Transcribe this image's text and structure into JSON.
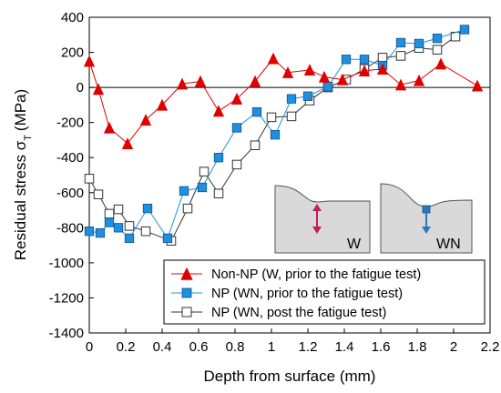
{
  "chart_data": {
    "type": "line",
    "xlabel": "Depth from surface (mm)",
    "ylabel": "Residual stress σ",
    "ylabel_subscript": "T",
    "ylabel_unit": "(MPa)",
    "xlim": [
      0,
      2.2
    ],
    "ylim": [
      -1400,
      400
    ],
    "xticks": [
      "0",
      "0.2",
      "0.4",
      "0.6",
      "0.8",
      "1",
      "1.2",
      "1.4",
      "1.6",
      "1.8",
      "2",
      "2.2"
    ],
    "yticks": [
      "-1400",
      "-1200",
      "-1000",
      "-800",
      "-600",
      "-400",
      "-200",
      "0",
      "200",
      "400"
    ],
    "legend_position": "bottom-right",
    "series": [
      {
        "name": "Non-NP (W, prior to the fatigue test)",
        "color": "#e00000",
        "marker": "triangle",
        "x": [
          0.0,
          0.05,
          0.11,
          0.21,
          0.31,
          0.4,
          0.51,
          0.61,
          0.71,
          0.81,
          0.91,
          1.01,
          1.09,
          1.21,
          1.29,
          1.39,
          1.51,
          1.61,
          1.71,
          1.81,
          1.93,
          2.13
        ],
        "y": [
          150,
          -10,
          -230,
          -320,
          -185,
          -100,
          20,
          35,
          -135,
          -65,
          35,
          165,
          85,
          100,
          60,
          45,
          95,
          105,
          15,
          40,
          135,
          10
        ]
      },
      {
        "name": "NP (WN, prior to the fatigue test)",
        "color": "#1e90e0",
        "marker": "square",
        "x": [
          0.0,
          0.06,
          0.11,
          0.16,
          0.22,
          0.32,
          0.43,
          0.52,
          0.62,
          0.71,
          0.81,
          0.92,
          1.02,
          1.11,
          1.2,
          1.31,
          1.41,
          1.51,
          1.61,
          1.71,
          1.81,
          1.91,
          2.06
        ],
        "y": [
          -820,
          -830,
          -770,
          -800,
          -860,
          -690,
          -860,
          -590,
          -570,
          -400,
          -230,
          -140,
          -270,
          -65,
          -50,
          5,
          160,
          160,
          125,
          255,
          250,
          280,
          330
        ]
      },
      {
        "name": "NP (WN, post the fatigue test)",
        "color": "#333333",
        "marker": "open-square",
        "x": [
          0.0,
          0.05,
          0.11,
          0.16,
          0.22,
          0.31,
          0.45,
          0.54,
          0.63,
          0.71,
          0.81,
          0.91,
          1.0,
          1.11,
          1.21,
          1.31,
          1.41,
          1.51,
          1.61,
          1.71,
          1.81,
          1.91,
          2.01
        ],
        "y": [
          -520,
          -610,
          -720,
          -695,
          -790,
          -820,
          -875,
          -690,
          -480,
          -605,
          -440,
          -330,
          -170,
          -165,
          -75,
          0,
          45,
          105,
          170,
          180,
          225,
          215,
          290
        ]
      }
    ],
    "inset": {
      "left_label": "W",
      "right_label": "WN",
      "left_arrow_color": "#c41e5a",
      "right_arrow_color": "#2a7ab8"
    }
  }
}
